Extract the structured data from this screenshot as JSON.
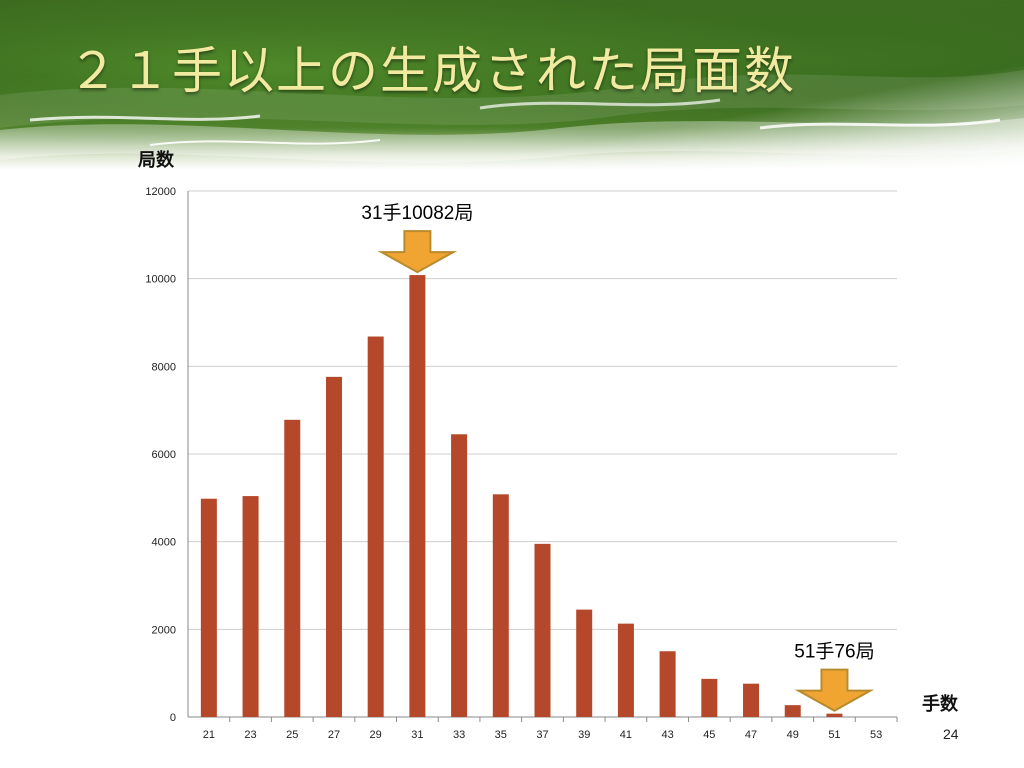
{
  "slide": {
    "title": "２１手以上の生成された局面数",
    "page_number": "24"
  },
  "colors": {
    "bar": "#b5472a",
    "arrow_fill": "#f0a532",
    "arrow_stroke": "#b98a2e",
    "grid": "#cfcfcf",
    "banner_green": "#3c6a1f",
    "title_color": "#f1eaa0"
  },
  "chart_data": {
    "type": "bar",
    "title": "",
    "xlabel": "手数",
    "ylabel": "局数",
    "categories": [
      "21",
      "23",
      "25",
      "27",
      "29",
      "31",
      "33",
      "35",
      "37",
      "39",
      "41",
      "43",
      "45",
      "47",
      "49",
      "51",
      "53"
    ],
    "values": [
      4980,
      5040,
      6780,
      7760,
      8680,
      10082,
      6450,
      5080,
      3950,
      2450,
      2130,
      1500,
      870,
      760,
      270,
      76,
      0
    ],
    "ylim": [
      0,
      12000
    ],
    "yticks": [
      0,
      2000,
      4000,
      6000,
      8000,
      10000,
      12000
    ],
    "grid": true,
    "legend": "none",
    "annotations": [
      {
        "text": "31手10082局",
        "category": "31",
        "value": 10082
      },
      {
        "text": "51手76局",
        "category": "51",
        "value": 76
      }
    ]
  }
}
